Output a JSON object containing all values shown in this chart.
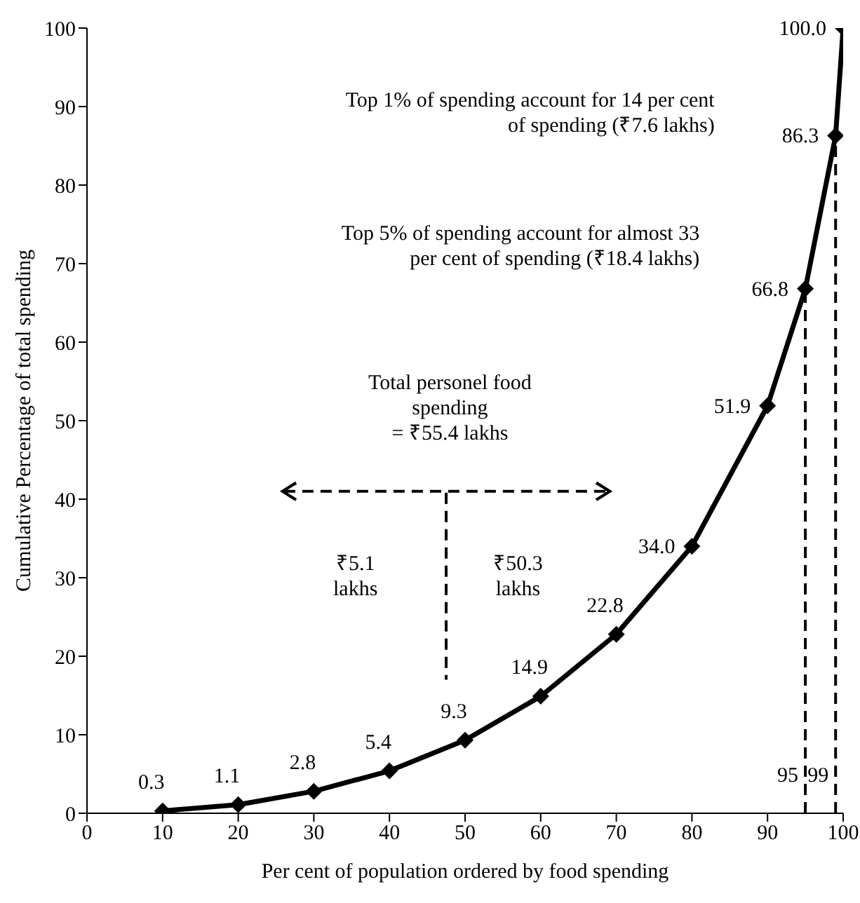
{
  "chart_data": {
    "type": "line",
    "xlabel": "Per cent of population ordered by food spending",
    "ylabel": "Cumulative Percentage of total spending",
    "x": [
      10,
      20,
      30,
      40,
      50,
      60,
      70,
      80,
      90,
      95,
      99,
      100
    ],
    "series": [
      {
        "color": "#000000",
        "values": [
          0.3,
          1.1,
          2.8,
          5.4,
          9.3,
          14.9,
          22.8,
          34.0,
          51.9,
          66.8,
          86.3,
          100.0
        ],
        "value_labels": [
          "0.3",
          "1.1",
          "2.8",
          "5.4",
          "9.3",
          "14.9",
          "22.8",
          "34.0",
          "51.9",
          "66.8",
          "86.3",
          "100.0"
        ]
      }
    ],
    "xlim": [
      0,
      100
    ],
    "xticks": [
      0,
      10,
      20,
      30,
      40,
      50,
      60,
      70,
      80,
      90,
      100
    ],
    "ylim": [
      0,
      100
    ],
    "yticks": [
      0,
      10,
      20,
      30,
      40,
      50,
      60,
      70,
      80,
      90,
      100
    ],
    "marker": "diamond",
    "line_style": "solid",
    "ref_lines": [
      {
        "axis": "x",
        "value": 95,
        "label": "95",
        "line_style": "dashed"
      },
      {
        "axis": "x",
        "value": 99,
        "label": "99",
        "line_style": "dashed"
      }
    ],
    "annotations": [
      "Top 1% of spending account for 14 per cent of spending (₹7.6 lakhs)",
      "Top 5% of spending account for almost 33 per cent of spending (₹18.4 lakhs)",
      "Total personel food spending = ₹55.4 lakhs",
      "₹5.1 lakhs",
      "₹50.3 lakhs"
    ]
  }
}
